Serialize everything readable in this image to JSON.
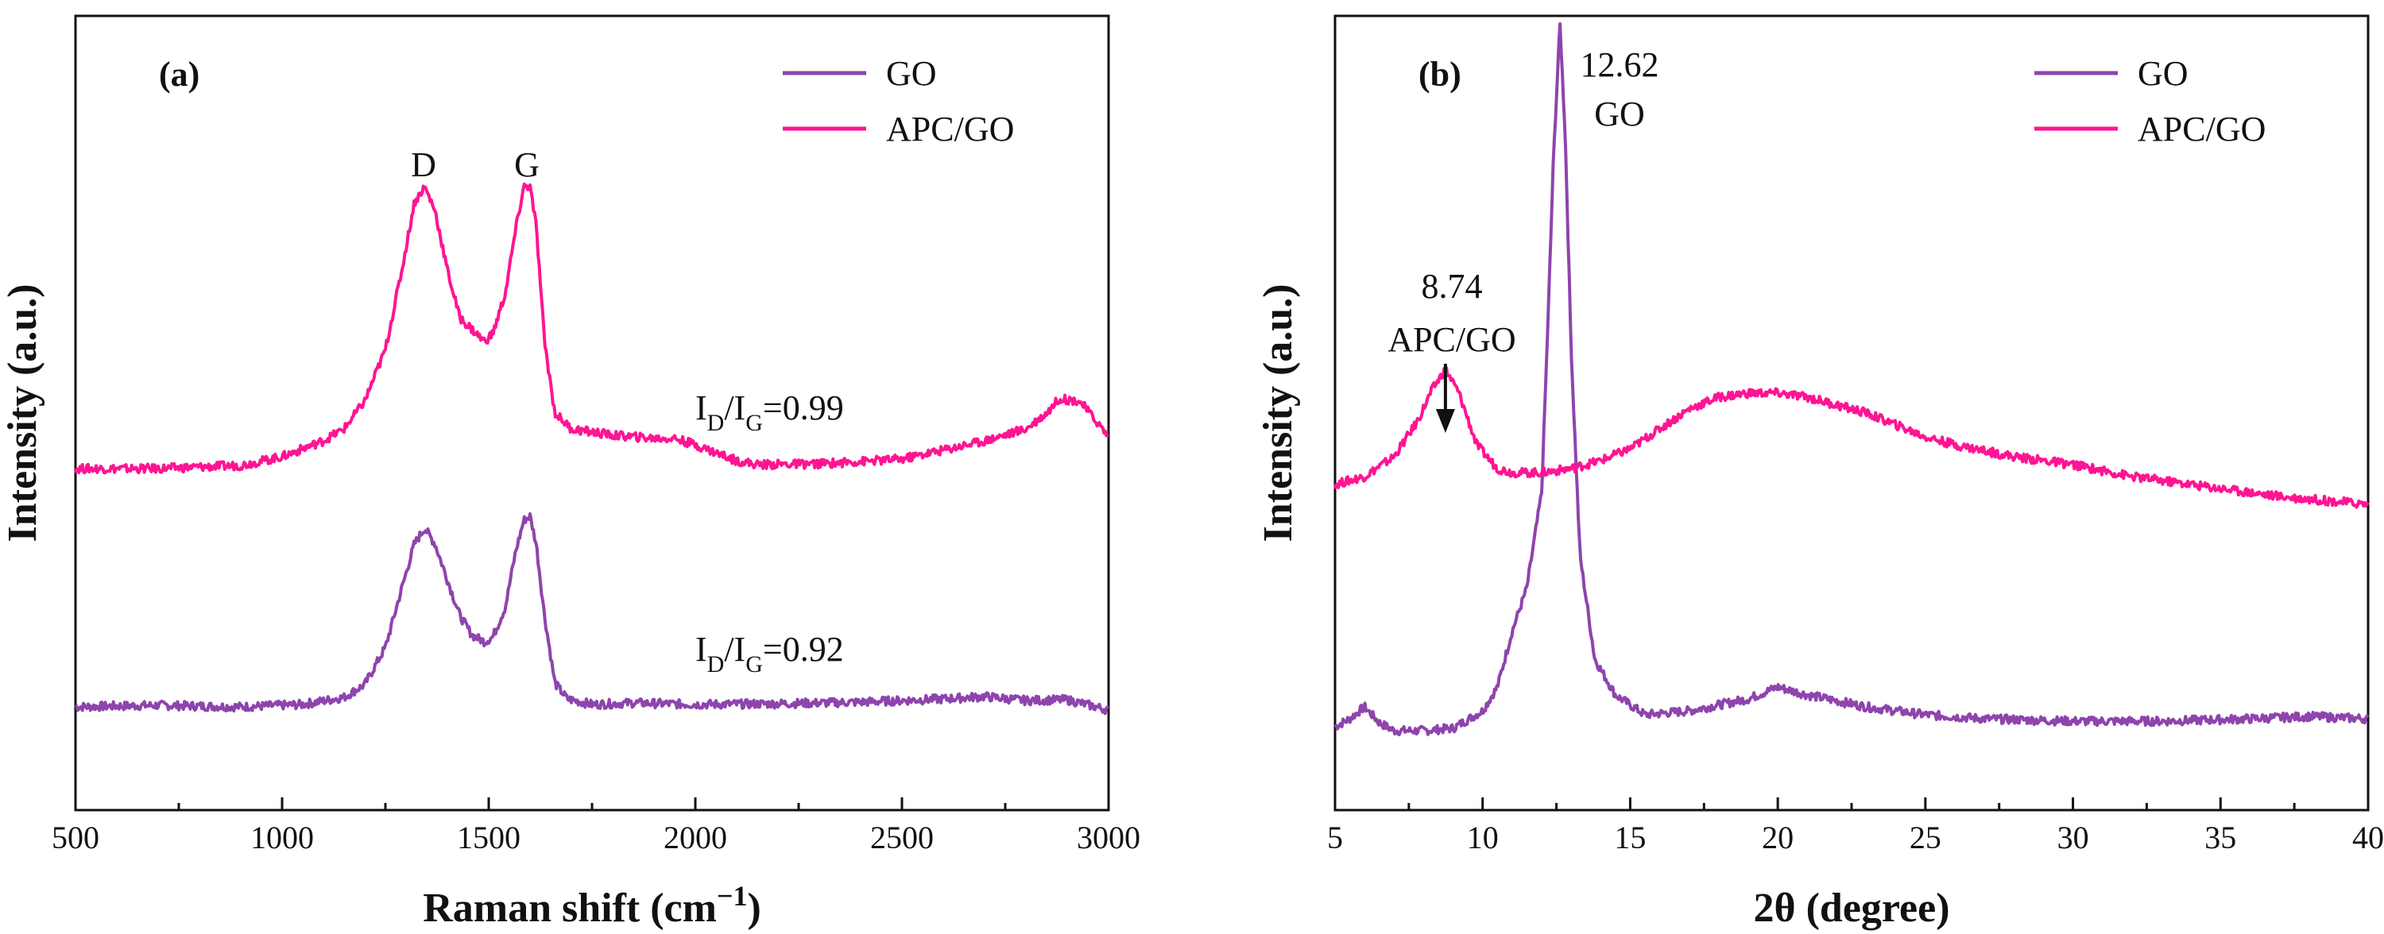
{
  "colors": {
    "go": "#8E44AD",
    "apc_go": "#FF1493",
    "axis": "#111111"
  },
  "chart_data": [
    {
      "type": "line",
      "panel_label": "(a)",
      "xlabel_main": "Raman shift (cm",
      "xlabel_sup": "−1",
      "xlabel_close": ")",
      "ylabel": "Intensity (a.u.)",
      "xlim": [
        500,
        3000
      ],
      "ylim": [
        0,
        100
      ],
      "xticks": [
        500,
        1000,
        1500,
        2000,
        2500,
        3000
      ],
      "xtick_labels": [
        "500",
        "1000",
        "1500",
        "2000",
        "2500",
        "3000"
      ],
      "legend_position": "top-right",
      "series": [
        {
          "name": "GO",
          "color": "#8E44AD",
          "x": [
            500,
            700,
            900,
            1050,
            1150,
            1200,
            1250,
            1290,
            1320,
            1345,
            1370,
            1400,
            1430,
            1460,
            1490,
            1510,
            1540,
            1565,
            1585,
            1600,
            1615,
            1635,
            1660,
            1690,
            1750,
            1850,
            2000,
            2200,
            2400,
            2600,
            2700,
            2800,
            2900,
            3000
          ],
          "y": [
            13.0,
            13.2,
            13.0,
            13.3,
            14.2,
            15.8,
            20.5,
            28.0,
            33.5,
            35.5,
            33.5,
            29.0,
            24.5,
            22.0,
            21.2,
            21.8,
            25.5,
            32.5,
            36.5,
            37.0,
            33.5,
            24.5,
            16.0,
            14.0,
            13.3,
            13.5,
            13.3,
            13.4,
            13.6,
            14.0,
            14.3,
            13.8,
            13.9,
            12.6
          ]
        },
        {
          "name": "APC/GO",
          "color": "#FF1493",
          "x": [
            500,
            700,
            900,
            1000,
            1100,
            1150,
            1200,
            1250,
            1290,
            1320,
            1345,
            1370,
            1400,
            1430,
            1460,
            1490,
            1510,
            1540,
            1565,
            1585,
            1600,
            1615,
            1635,
            1660,
            1700,
            1800,
            1900,
            1950,
            2000,
            2100,
            2150,
            2300,
            2500,
            2700,
            2800,
            2850,
            2880,
            2930,
            2970,
            3000
          ],
          "y": [
            43.0,
            43.0,
            43.4,
            44.5,
            46.5,
            48.0,
            51.5,
            58.0,
            68.0,
            76.5,
            78.5,
            75.5,
            68.0,
            62.0,
            60.5,
            59.0,
            60.0,
            65.0,
            73.0,
            78.5,
            78.5,
            73.5,
            59.0,
            50.0,
            48.0,
            47.2,
            46.8,
            46.8,
            46.0,
            44.0,
            43.5,
            43.6,
            44.2,
            46.5,
            48.0,
            50.0,
            51.8,
            51.5,
            49.0,
            47.0
          ]
        }
      ],
      "annotations": {
        "d_label": "D",
        "g_label": "G",
        "apc_ratio": {
          "prefix": "I",
          "sub1": "D",
          "slash": "/I",
          "sub2": "G",
          "value": "=0.99"
        },
        "go_ratio": {
          "prefix": "I",
          "sub1": "D",
          "slash": "/I",
          "sub2": "G",
          "value": "=0.92"
        }
      }
    },
    {
      "type": "line",
      "panel_label": "(b)",
      "xlabel": "2θ (degree)",
      "ylabel": "Intensity (a.u.)",
      "xlim": [
        5,
        40
      ],
      "ylim": [
        0,
        100
      ],
      "xticks": [
        5,
        10,
        15,
        20,
        25,
        30,
        35,
        40
      ],
      "xtick_labels": [
        "5",
        "10",
        "15",
        "20",
        "25",
        "30",
        "35",
        "40"
      ],
      "legend_position": "top-right",
      "series": [
        {
          "name": "GO",
          "color": "#8E44AD",
          "x": [
            5,
            5.5,
            6,
            6.5,
            7,
            8,
            9,
            10,
            10.5,
            11,
            11.5,
            12,
            12.2,
            12.4,
            12.62,
            12.8,
            13.0,
            13.3,
            13.8,
            14.5,
            15.5,
            17,
            19,
            20,
            21,
            23,
            25,
            27,
            30,
            33,
            36,
            38,
            40
          ],
          "y": [
            10.5,
            11.5,
            13.0,
            11.0,
            10.0,
            10.0,
            10.3,
            12.5,
            15.5,
            22.5,
            28.0,
            40.0,
            60.0,
            82.0,
            99.0,
            85.0,
            58.0,
            32.0,
            19.0,
            14.5,
            12.0,
            12.5,
            14.0,
            15.5,
            14.5,
            13.0,
            12.0,
            11.5,
            11.2,
            11.2,
            11.5,
            11.8,
            11.5
          ]
        },
        {
          "name": "APC/GO",
          "color": "#FF1493",
          "x": [
            5,
            6,
            7,
            7.8,
            8.3,
            8.74,
            9.2,
            9.8,
            10.5,
            11,
            12,
            13,
            14,
            15,
            16,
            17,
            18,
            19,
            20,
            21,
            22,
            23,
            24,
            25,
            26,
            28,
            30,
            32,
            35,
            37,
            40
          ],
          "y": [
            41.0,
            42.0,
            44.5,
            49.0,
            53.0,
            55.5,
            52.5,
            46.0,
            43.0,
            42.5,
            42.5,
            43.0,
            44.0,
            45.5,
            48.0,
            50.5,
            52.0,
            52.5,
            52.5,
            52.0,
            51.0,
            50.0,
            48.5,
            47.0,
            46.0,
            44.5,
            43.5,
            42.0,
            40.5,
            39.5,
            38.5
          ]
        }
      ],
      "annotations": {
        "go_peak_value": "12.62",
        "go_peak_name": "GO",
        "apc_peak_value": "8.74",
        "apc_peak_name": "APC/GO",
        "apc_peak_x": 8.74
      }
    }
  ]
}
